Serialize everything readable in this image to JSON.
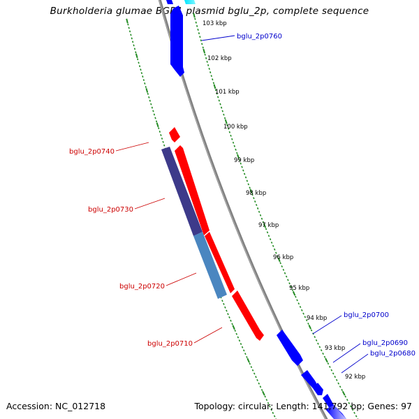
{
  "title": "Burkholderia glumae BGR1 plasmid bglu_2p, complete sequence",
  "accession": "Accession: NC_012718",
  "summary": "Topology: circular; Length: 141,792 bp; Genes: 97",
  "colors": {
    "backbone": "#808080",
    "gc_ticks": "#228b22",
    "forward_gene": "#0000ff",
    "reverse_gene": "#ff0000",
    "reverse_label": "#cc0000",
    "forward_label": "#0000cc",
    "cds_dark": "#3d3a8a",
    "cds_light": "#4a86c0",
    "cyan_feature": "#00e5ff"
  },
  "kbp_labels": [
    "103 kbp",
    "102 kbp",
    "101 kbp",
    "100 kbp",
    "99 kbp",
    "98 kbp",
    "97 kbp",
    "96 kbp",
    "95 kbp",
    "94 kbp",
    "93 kbp",
    "92 kbp"
  ],
  "gene_labels": {
    "bglu_2p0760": "bglu_2p0760",
    "bglu_2p0740": "bglu_2p0740",
    "bglu_2p0730": "bglu_2p0730",
    "bglu_2p0720": "bglu_2p0720",
    "bglu_2p0710": "bglu_2p0710",
    "bglu_2p0700": "bglu_2p0700",
    "bglu_2p0690": "bglu_2p0690",
    "bglu_2p0680": "bglu_2p0680"
  }
}
